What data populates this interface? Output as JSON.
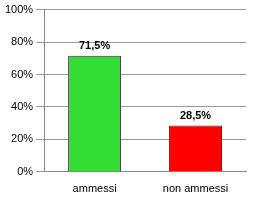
{
  "chart_data": {
    "type": "bar",
    "categories": [
      "ammessi",
      "non ammessi"
    ],
    "values": [
      71.5,
      28.5
    ],
    "value_labels": [
      "71,5%",
      "28,5%"
    ],
    "colors": [
      "#33dd33",
      "#ff0000"
    ],
    "ylim": [
      0,
      100
    ],
    "yticks": [
      {
        "value": 0,
        "label": "0%"
      },
      {
        "value": 20,
        "label": "20%"
      },
      {
        "value": 40,
        "label": "40%"
      },
      {
        "value": 60,
        "label": "60%"
      },
      {
        "value": 80,
        "label": "80%"
      },
      {
        "value": 100,
        "label": "100%"
      }
    ],
    "grid": true,
    "data_labels": true
  }
}
